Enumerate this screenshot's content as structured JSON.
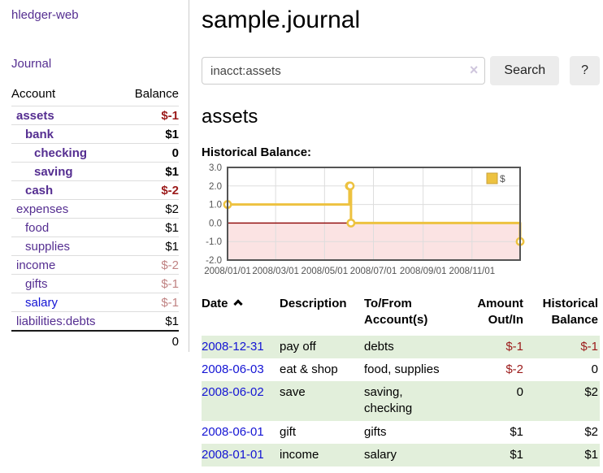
{
  "colors": {
    "link_purple": "#552e91",
    "link_blue": "#1414d4",
    "negative_strong": "#9b1a1a",
    "negative_muted": "#c08383",
    "row_shade_green": "#e2efdb",
    "series_gold": "#edc240",
    "chart_negative_fill": "#fbe3e3",
    "chart_zero_line": "#8b0000"
  },
  "sidebar": {
    "brand": "hledger-web",
    "journal_link": "Journal",
    "headers": {
      "account": "Account",
      "balance": "Balance"
    },
    "rows": [
      {
        "account": "assets",
        "balance": "$-1",
        "depth": 1,
        "bold": true,
        "link_color": "purple",
        "balance_style": "negstrong",
        "balance_bold": true
      },
      {
        "account": "bank",
        "balance": "$1",
        "depth": 2,
        "bold": true,
        "link_color": "purple",
        "balance_style": "plain",
        "balance_bold": true
      },
      {
        "account": "checking",
        "balance": "0",
        "depth": 3,
        "bold": true,
        "link_color": "purple",
        "balance_style": "plain",
        "balance_bold": true
      },
      {
        "account": "saving",
        "balance": "$1",
        "depth": 3,
        "bold": true,
        "link_color": "purple",
        "balance_style": "plain",
        "balance_bold": true
      },
      {
        "account": "cash",
        "balance": "$-2",
        "depth": 2,
        "bold": true,
        "link_color": "purple",
        "balance_style": "negstrong",
        "balance_bold": true
      },
      {
        "account": "expenses",
        "balance": "$2",
        "depth": 1,
        "bold": false,
        "link_color": "purple",
        "balance_style": "plain",
        "balance_bold": false
      },
      {
        "account": "food",
        "balance": "$1",
        "depth": 2,
        "bold": false,
        "link_color": "purple",
        "balance_style": "plain",
        "balance_bold": false
      },
      {
        "account": "supplies",
        "balance": "$1",
        "depth": 2,
        "bold": false,
        "link_color": "purple",
        "balance_style": "plain",
        "balance_bold": false
      },
      {
        "account": "income",
        "balance": "$-2",
        "depth": 1,
        "bold": false,
        "link_color": "purple",
        "balance_style": "rose",
        "balance_bold": false
      },
      {
        "account": "gifts",
        "balance": "$-1",
        "depth": 2,
        "bold": false,
        "link_color": "purple",
        "balance_style": "rose",
        "balance_bold": false
      },
      {
        "account": "salary",
        "balance": "$-1",
        "depth": 2,
        "bold": false,
        "link_color": "blue",
        "balance_style": "rose",
        "balance_bold": false
      },
      {
        "account": "liabilities:debts",
        "balance": "$1",
        "depth": 1,
        "bold": false,
        "link_color": "purple",
        "balance_style": "plain",
        "balance_bold": false
      }
    ],
    "total": "0"
  },
  "header": {
    "title": "sample.journal"
  },
  "search": {
    "query": "inacct:assets",
    "clear_icon": "×",
    "search_button": "Search",
    "help_button": "?"
  },
  "account_page": {
    "title": "assets",
    "chart_label": "Historical Balance:"
  },
  "chart_data": {
    "type": "line",
    "title": "Historical Balance",
    "series": [
      {
        "name": "$",
        "color": "#edc240",
        "step": true,
        "points": [
          [
            "2008-01-01",
            1
          ],
          [
            "2008-06-01",
            2
          ],
          [
            "2008-06-02",
            2
          ],
          [
            "2008-06-03",
            0
          ],
          [
            "2008-12-31",
            -1
          ]
        ]
      }
    ],
    "x_range": [
      "2008-01-01",
      "2008-12-31"
    ],
    "ylim": [
      -2,
      3
    ],
    "y_ticks": [
      "3.0",
      "2.0",
      "1.0",
      "0.0",
      "-1.0",
      "-2.0"
    ],
    "x_ticks": [
      {
        "date": "2008-01-01",
        "label": "2008/01/01"
      },
      {
        "date": "2008-03-01",
        "label": "2008/03/01"
      },
      {
        "date": "2008-05-01",
        "label": "2008/05/01"
      },
      {
        "date": "2008-07-01",
        "label": "2008/07/01"
      },
      {
        "date": "2008-09-01",
        "label": "2008/09/01"
      },
      {
        "date": "2008-11-01",
        "label": "2008/11/01"
      }
    ],
    "grid": true,
    "legend": {
      "label": "$",
      "position": "top-right"
    },
    "negative_region_shaded": true
  },
  "register": {
    "headers": [
      [
        "Date"
      ],
      [
        "Description"
      ],
      [
        "To/From",
        "Account(s)"
      ],
      [
        "Amount",
        "Out/In"
      ],
      [
        "Historical",
        "Balance"
      ]
    ],
    "sort": {
      "column": "Date",
      "direction": "ascending"
    },
    "rows": [
      {
        "date": "2008-12-31",
        "description": "pay off",
        "accounts": "debts",
        "amount": "$-1",
        "amount_negative": true,
        "balance": "$-1",
        "balance_negative": true,
        "shaded": true
      },
      {
        "date": "2008-06-03",
        "description": "eat & shop",
        "accounts": "food, supplies",
        "amount": "$-2",
        "amount_negative": true,
        "balance": "0",
        "balance_negative": false,
        "shaded": false
      },
      {
        "date": "2008-06-02",
        "description": "save",
        "accounts": "saving, checking",
        "amount": "0",
        "amount_negative": false,
        "balance": "$2",
        "balance_negative": false,
        "shaded": true
      },
      {
        "date": "2008-06-01",
        "description": "gift",
        "accounts": "gifts",
        "amount": "$1",
        "amount_negative": false,
        "balance": "$2",
        "balance_negative": false,
        "shaded": false
      },
      {
        "date": "2008-01-01",
        "description": "income",
        "accounts": "salary",
        "amount": "$1",
        "amount_negative": false,
        "balance": "$1",
        "balance_negative": false,
        "shaded": true
      }
    ]
  }
}
